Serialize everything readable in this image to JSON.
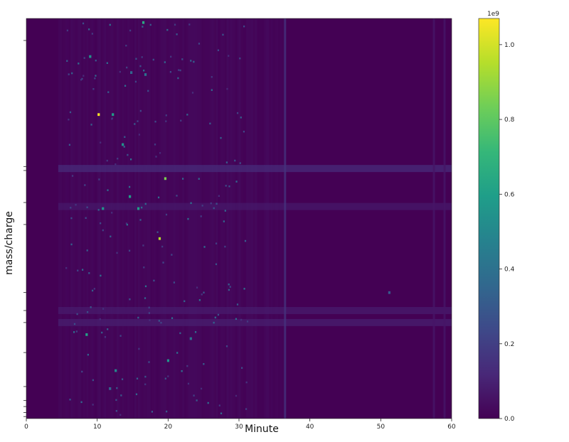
{
  "chart_data": {
    "type": "heatmap",
    "title": "",
    "xlabel": "Minute",
    "ylabel": "mass/charge",
    "xlim": [
      0,
      60
    ],
    "x_ticks": [
      0,
      10,
      20,
      30,
      40,
      50,
      60
    ],
    "x_tick_labels": [
      "0",
      "10",
      "20",
      "30",
      "40",
      "50",
      "60"
    ],
    "y_tick_count": 14,
    "y_tick_labels_visible": false,
    "colormap": "viridis",
    "colormap_stops": [
      "#440154",
      "#482878",
      "#3e4989",
      "#31688e",
      "#26828e",
      "#1f9e89",
      "#35b779",
      "#6ece58",
      "#b5de2b",
      "#fde725"
    ],
    "colorbar": {
      "multiplier_label": "1e9",
      "range": [
        0,
        1.07
      ],
      "ticks": [
        0.0,
        0.2,
        0.4,
        0.6,
        0.8,
        1.0
      ],
      "tick_labels": [
        "0.0",
        "0.2",
        "0.4",
        "0.6",
        "0.8",
        "1.0"
      ]
    },
    "background_intensity": 0.0,
    "signal_region_minutes": [
      4.5,
      36.5
    ],
    "horizontal_bands": [
      {
        "row": 0.375,
        "intensity": 0.13
      },
      {
        "row": 0.47,
        "intensity": 0.07
      },
      {
        "row": 0.73,
        "intensity": 0.08
      },
      {
        "row": 0.76,
        "intensity": 0.09
      }
    ],
    "vertical_bands_minutes": [
      {
        "minute": 36.5,
        "intensity": 0.15
      },
      {
        "minute": 57.5,
        "intensity": 0.06
      },
      {
        "minute": 59.0,
        "intensity": 0.06
      }
    ],
    "peaks": [
      {
        "minute": 16.5,
        "row": 0.01,
        "value": 0.65
      },
      {
        "minute": 9.0,
        "row": 0.095,
        "value": 0.55
      },
      {
        "minute": 10.2,
        "row": 0.24,
        "value": 1.07
      },
      {
        "minute": 12.2,
        "row": 0.24,
        "value": 0.6
      },
      {
        "minute": 13.6,
        "row": 0.315,
        "value": 0.55
      },
      {
        "minute": 19.6,
        "row": 0.4,
        "value": 0.85
      },
      {
        "minute": 14.6,
        "row": 0.445,
        "value": 0.6
      },
      {
        "minute": 10.8,
        "row": 0.475,
        "value": 0.55
      },
      {
        "minute": 15.8,
        "row": 0.475,
        "value": 0.6
      },
      {
        "minute": 18.8,
        "row": 0.55,
        "value": 0.95
      },
      {
        "minute": 8.5,
        "row": 0.79,
        "value": 0.62
      },
      {
        "minute": 20.0,
        "row": 0.855,
        "value": 0.55
      },
      {
        "minute": 12.6,
        "row": 0.88,
        "value": 0.5
      },
      {
        "minute": 51.2,
        "row": 0.685,
        "value": 0.3
      },
      {
        "minute": 11.8,
        "row": 0.925,
        "value": 0.35
      },
      {
        "minute": 23.2,
        "row": 0.8,
        "value": 0.4
      },
      {
        "minute": 16.8,
        "row": 0.14,
        "value": 0.4
      },
      {
        "minute": 14.8,
        "row": 0.135,
        "value": 0.35
      }
    ]
  }
}
